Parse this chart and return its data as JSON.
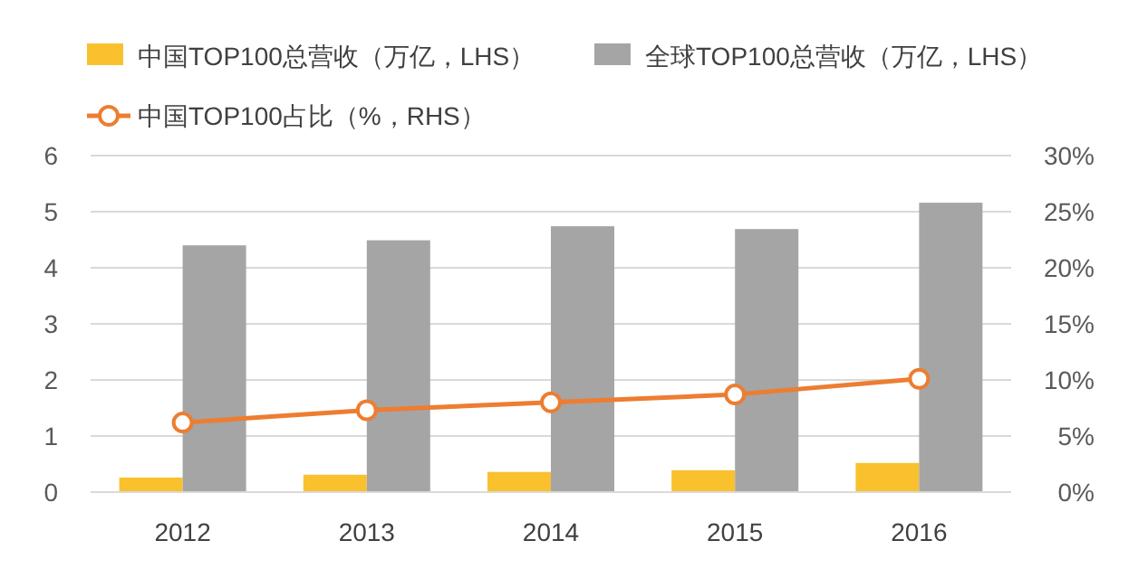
{
  "chart_data": {
    "type": "bar",
    "categories": [
      "2012",
      "2013",
      "2014",
      "2015",
      "2016"
    ],
    "series": [
      {
        "name": "中国TOP100总营收（万亿，LHS）",
        "color": "#f8c12d",
        "values": [
          0.26,
          0.31,
          0.36,
          0.39,
          0.52
        ]
      },
      {
        "name": "全球TOP100总营收（万亿，LHS）",
        "color": "#a5a5a5",
        "values": [
          4.4,
          4.49,
          4.74,
          4.69,
          5.16
        ]
      },
      {
        "name": "中国TOP100占比（%，RHS）",
        "type": "line",
        "axis": "y2",
        "color": "#ed7d31",
        "marker": "circle",
        "values": [
          6.2,
          7.3,
          8.0,
          8.7,
          10.1
        ]
      }
    ],
    "ylim": [
      0,
      6
    ],
    "yticks": [
      0,
      1,
      2,
      3,
      4,
      5,
      6
    ],
    "y2lim": [
      0,
      30
    ],
    "y2ticks": [
      {
        "value": 0,
        "label": "0%"
      },
      {
        "value": 5,
        "label": "5%"
      },
      {
        "value": 10,
        "label": "10%"
      },
      {
        "value": 15,
        "label": "15%"
      },
      {
        "value": 20,
        "label": "20%"
      },
      {
        "value": 25,
        "label": "25%"
      },
      {
        "value": 30,
        "label": "30%"
      }
    ],
    "grid": "y",
    "legend": "top"
  }
}
